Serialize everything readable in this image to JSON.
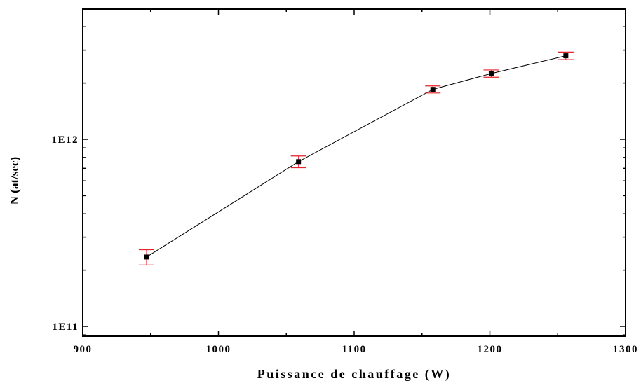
{
  "chart_data": {
    "type": "scatter",
    "title": "",
    "xlabel": "Puissance de chauffage (W)",
    "ylabel": "N (at/sec)",
    "xlim": [
      900,
      1300
    ],
    "ylim": [
      100000000000.0,
      5000000000000.0
    ],
    "yscale": "log",
    "x_ticks": [
      900,
      1000,
      1100,
      1200,
      1300
    ],
    "x_tick_labels": [
      "900",
      "1000",
      "1100",
      "1200",
      "1300"
    ],
    "y_ticks": [
      100000000000.0,
      1000000000000.0
    ],
    "y_tick_labels": [
      "1E11",
      "1E12"
    ],
    "grid": false,
    "legend": false,
    "connected": true,
    "colors": {
      "markers": "#000000",
      "line": "#000000",
      "error_bars": "#e8212a"
    },
    "series": [
      {
        "x": [
          947,
          1059,
          1158,
          1201,
          1256
        ],
        "y": [
          235000000000.0,
          760000000000.0,
          1850000000000.0,
          2250000000000.0,
          2800000000000.0
        ],
        "y_error": [
          22000000000.0,
          55000000000.0,
          80000000000.0,
          100000000000.0,
          130000000000.0
        ]
      }
    ]
  }
}
